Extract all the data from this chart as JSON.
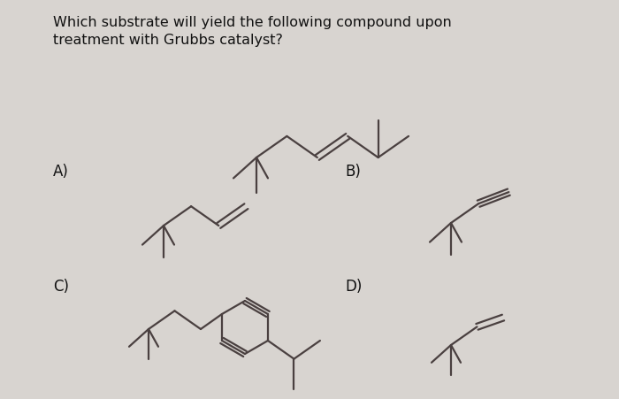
{
  "title_line1": "Which substrate will yield the following compound upon",
  "title_line2": "treatment with Grubbs catalyst?",
  "bg_color": "#d8d4d0",
  "line_color": "#4a4040",
  "text_color": "#111111",
  "label_A": "A)",
  "label_B": "B)",
  "label_C": "C)",
  "label_D": "D)",
  "lw": 1.6
}
